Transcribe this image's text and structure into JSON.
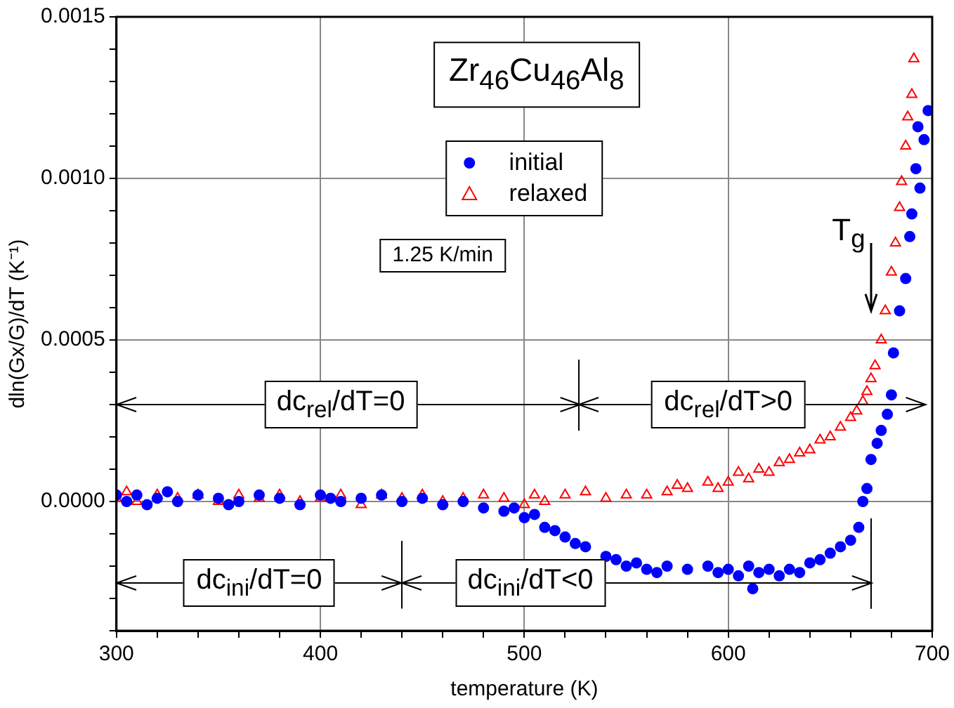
{
  "chart_data": {
    "type": "scatter",
    "xlabel": "temperature (K)",
    "ylabel": "dln(Gx/G)/dT (K⁻¹)",
    "annotations": [
      "Zr$_{46}$Cu$_{46}$Al$_{8}$",
      "1.25 K/min",
      "dc$_{rel}$/dT=0",
      "dc$_{rel}$/dT>0",
      "dc$_{ini}$/dT=0",
      "dc$_{ini}$/dT<0",
      "T$_{g}$"
    ],
    "xlim": [
      300,
      700
    ],
    "ylim": [
      -0.0004,
      0.0015
    ],
    "xticks": [
      300,
      {
        "value": 320,
        "label": null
      },
      {
        "value": 340,
        "label": null
      },
      {
        "value": 360,
        "label": null
      },
      {
        "value": 380,
        "label": null
      },
      400,
      {
        "value": 420,
        "label": null
      },
      {
        "value": 440,
        "label": null
      },
      {
        "value": 460,
        "label": null
      },
      {
        "value": 480,
        "label": null
      },
      500,
      {
        "value": 520,
        "label": null
      },
      {
        "value": 540,
        "label": null
      },
      {
        "value": 560,
        "label": null
      },
      {
        "value": 580,
        "label": null
      },
      600,
      {
        "value": 620,
        "label": null
      },
      {
        "value": 640,
        "label": null
      },
      {
        "value": 660,
        "label": null
      },
      {
        "value": 680,
        "label": null
      },
      700
    ],
    "yticks": [
      {
        "value": -0.0004,
        "label": null
      },
      {
        "value": -0.0003,
        "label": null
      },
      {
        "value": -0.0002,
        "label": null
      },
      {
        "value": -0.0001,
        "label": null
      },
      {
        "value": 0,
        "label": "0.0000"
      },
      {
        "value": 0.0001,
        "label": null
      },
      {
        "value": 0.0002,
        "label": null
      },
      {
        "value": 0.0003,
        "label": null
      },
      {
        "value": 0.0004,
        "label": null
      },
      0.0005,
      {
        "value": 0.0006,
        "label": null
      },
      {
        "value": 0.0007,
        "label": null
      },
      {
        "value": 0.0008,
        "label": null
      },
      {
        "value": 0.0009,
        "label": null
      },
      {
        "value": 0.001,
        "label": "0.0010"
      },
      {
        "value": 0.0011,
        "label": null
      },
      {
        "value": 0.0012,
        "label": null
      },
      {
        "value": 0.0013,
        "label": null
      },
      {
        "value": 0.0014,
        "label": null
      },
      0.0015
    ],
    "grid": true,
    "legend": "top",
    "series": [
      {
        "name": "initial",
        "color": "#0000ff",
        "marker": "circle",
        "x": [
          300,
          305,
          310,
          315,
          320,
          325,
          330,
          340,
          350,
          355,
          360,
          370,
          380,
          390,
          400,
          405,
          410,
          420,
          430,
          440,
          450,
          460,
          470,
          480,
          490,
          495,
          500,
          505,
          510,
          515,
          520,
          525,
          530,
          540,
          545,
          550,
          555,
          560,
          565,
          570,
          580,
          590,
          595,
          600,
          605,
          610,
          612,
          615,
          620,
          625,
          630,
          635,
          640,
          645,
          650,
          655,
          660,
          664,
          666,
          668,
          670,
          673,
          675,
          678,
          680,
          681,
          684,
          687,
          689,
          690,
          692,
          694,
          693,
          696,
          698
        ],
        "values": [
          2e-05,
          0,
          2e-05,
          -1e-05,
          1e-05,
          3e-05,
          0,
          2e-05,
          1e-05,
          -1e-05,
          0,
          2e-05,
          1e-05,
          -1e-05,
          2e-05,
          1e-05,
          0,
          1e-05,
          2e-05,
          0,
          1e-05,
          -1e-05,
          0,
          -2e-05,
          -3e-05,
          -2e-05,
          -5e-05,
          -4e-05,
          -8e-05,
          -9e-05,
          -0.00011,
          -0.00013,
          -0.00014,
          -0.00017,
          -0.00018,
          -0.0002,
          -0.00019,
          -0.00021,
          -0.00022,
          -0.0002,
          -0.00021,
          -0.0002,
          -0.00022,
          -0.00021,
          -0.00023,
          -0.0002,
          -0.00027,
          -0.00022,
          -0.00021,
          -0.00023,
          -0.00021,
          -0.00022,
          -0.00019,
          -0.00018,
          -0.00016,
          -0.00014,
          -0.00012,
          -8e-05,
          0,
          4e-05,
          0.00013,
          0.00018,
          0.00022,
          0.00027,
          0.00033,
          0.00046,
          0.00059,
          0.00069,
          0.00082,
          0.00089,
          0.00103,
          0.00097,
          0.00116,
          0.00112,
          0.00121
        ]
      },
      {
        "name": "relaxed",
        "color": "#ff0000",
        "marker": "triangle",
        "x": [
          300,
          305,
          310,
          320,
          330,
          340,
          350,
          360,
          370,
          380,
          390,
          400,
          410,
          420,
          430,
          440,
          450,
          460,
          470,
          480,
          490,
          500,
          505,
          510,
          520,
          530,
          540,
          550,
          560,
          570,
          575,
          580,
          590,
          595,
          600,
          605,
          610,
          615,
          620,
          625,
          630,
          635,
          640,
          645,
          650,
          655,
          660,
          663,
          666,
          668,
          670,
          672,
          675,
          677,
          680,
          682,
          684,
          685,
          687,
          688,
          690,
          691
        ],
        "values": [
          1e-05,
          3e-05,
          0,
          2e-05,
          1e-05,
          2e-05,
          0,
          2e-05,
          1e-05,
          2e-05,
          0,
          1e-05,
          2e-05,
          -1e-05,
          2e-05,
          1e-05,
          2e-05,
          0,
          1e-05,
          2e-05,
          1e-05,
          -1e-05,
          2e-05,
          0,
          2e-05,
          3e-05,
          1e-05,
          2e-05,
          2e-05,
          3e-05,
          5e-05,
          4e-05,
          6e-05,
          4e-05,
          6e-05,
          9e-05,
          7e-05,
          0.0001,
          9e-05,
          0.00012,
          0.00013,
          0.00015,
          0.00016,
          0.00019,
          0.0002,
          0.00023,
          0.00026,
          0.00028,
          0.00031,
          0.00034,
          0.00038,
          0.00042,
          0.0005,
          0.00059,
          0.00071,
          0.0008,
          0.00091,
          0.00099,
          0.0011,
          0.00119,
          0.00126,
          0.00137
        ]
      }
    ]
  }
}
